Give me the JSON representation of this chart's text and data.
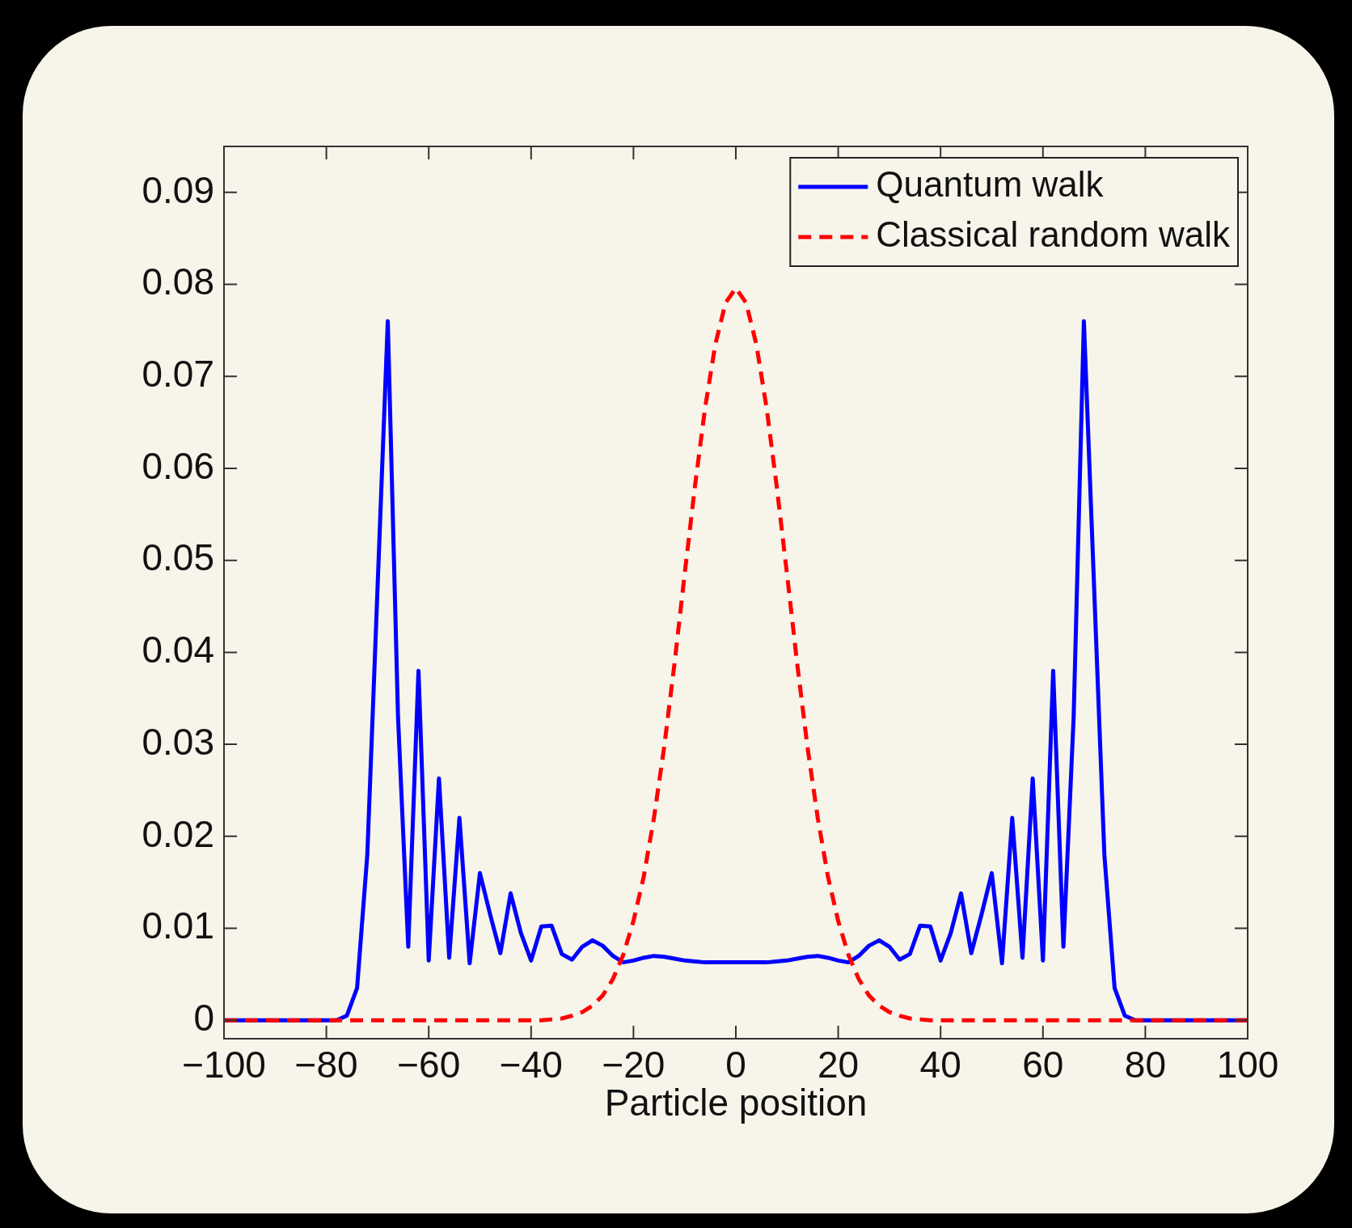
{
  "chart_data": {
    "type": "line",
    "xlabel": "Particle position",
    "legend": "top right",
    "grid": false,
    "marker": "none",
    "xlim": [
      -100,
      100
    ],
    "ylim": [
      -0.002,
      0.095
    ],
    "xticks": [
      {
        "value": -100,
        "label": "−100"
      },
      {
        "value": -80,
        "label": "−80"
      },
      {
        "value": -60,
        "label": "−60"
      },
      {
        "value": -40,
        "label": "−40"
      },
      {
        "value": -20,
        "label": "−20"
      },
      0,
      20,
      40,
      60,
      80,
      100
    ],
    "yticks": [
      0,
      0.01,
      0.02,
      0.03,
      0.04,
      0.05,
      0.06,
      0.07,
      0.08,
      0.09
    ],
    "x": [
      -100,
      -98,
      -96,
      -94,
      -92,
      -90,
      -88,
      -86,
      -84,
      -82,
      -80,
      -78,
      -76,
      -74,
      -72,
      -70,
      -68,
      -66,
      -64,
      -62,
      -60,
      -58,
      -56,
      -54,
      -52,
      -50,
      -48,
      -46,
      -44,
      -42,
      -40,
      -38,
      -36,
      -34,
      -32,
      -30,
      -28,
      -26,
      -24,
      -22,
      -20,
      -18,
      -16,
      -14,
      -12,
      -10,
      -8,
      -6,
      -4,
      -2,
      0,
      2,
      4,
      6,
      8,
      10,
      12,
      14,
      16,
      18,
      20,
      22,
      24,
      26,
      28,
      30,
      32,
      34,
      36,
      38,
      40,
      42,
      44,
      46,
      48,
      50,
      52,
      54,
      56,
      58,
      60,
      62,
      64,
      66,
      68,
      70,
      72,
      74,
      76,
      78,
      80,
      82,
      84,
      86,
      88,
      90,
      92,
      94,
      96,
      98,
      100
    ],
    "series": [
      {
        "name": "Quantum walk",
        "color": "#0000ff",
        "line_style": "solid",
        "values": [
          0,
          0,
          0,
          0,
          0,
          0,
          0,
          0,
          0,
          0,
          0,
          0,
          0.0005,
          0.0035,
          0.018,
          0.047,
          0.076,
          0.033,
          0.008,
          0.038,
          0.0065,
          0.0263,
          0.0068,
          0.022,
          0.0062,
          0.016,
          0.0115,
          0.0073,
          0.0138,
          0.0095,
          0.0065,
          0.0102,
          0.0103,
          0.0072,
          0.0066,
          0.008,
          0.0087,
          0.0081,
          0.007,
          0.0063,
          0.0065,
          0.0068,
          0.007,
          0.0069,
          0.0067,
          0.0065,
          0.0064,
          0.0063,
          0.0063,
          0.0063,
          0.0063,
          0.0063,
          0.0063,
          0.0063,
          0.0064,
          0.0065,
          0.0067,
          0.0069,
          0.007,
          0.0068,
          0.0065,
          0.0063,
          0.007,
          0.0081,
          0.0087,
          0.008,
          0.0066,
          0.0072,
          0.0103,
          0.0102,
          0.0065,
          0.0095,
          0.0138,
          0.0073,
          0.0115,
          0.016,
          0.0062,
          0.022,
          0.0068,
          0.0263,
          0.0065,
          0.038,
          0.008,
          0.033,
          0.076,
          0.047,
          0.018,
          0.0035,
          0.0005,
          0,
          0,
          0,
          0,
          0,
          0,
          0,
          0,
          0,
          0,
          0,
          0
        ]
      },
      {
        "name": "Classical random walk",
        "color": "#ff0000",
        "line_style": "dashed",
        "values": [
          0,
          0,
          0,
          0,
          0,
          0,
          0,
          0,
          0,
          0,
          0,
          0,
          0,
          0,
          0,
          0,
          0,
          0,
          0,
          0,
          0,
          0,
          0,
          0,
          0,
          0,
          0,
          0,
          0,
          0,
          0,
          0,
          0.0001,
          0.0002,
          0.0005,
          0.0009,
          0.0016,
          0.0027,
          0.0045,
          0.0071,
          0.0108,
          0.0156,
          0.022,
          0.0297,
          0.0387,
          0.0485,
          0.058,
          0.0666,
          0.0735,
          0.078,
          0.0796,
          0.078,
          0.0735,
          0.0666,
          0.058,
          0.0485,
          0.0387,
          0.0297,
          0.022,
          0.0156,
          0.0108,
          0.0071,
          0.0045,
          0.0027,
          0.0016,
          0.0009,
          0.0005,
          0.0002,
          0.0001,
          0,
          0,
          0,
          0,
          0,
          0,
          0,
          0,
          0,
          0,
          0,
          0,
          0,
          0,
          0,
          0,
          0,
          0,
          0,
          0,
          0,
          0,
          0,
          0,
          0,
          0,
          0,
          0,
          0,
          0,
          0,
          0
        ]
      }
    ]
  }
}
